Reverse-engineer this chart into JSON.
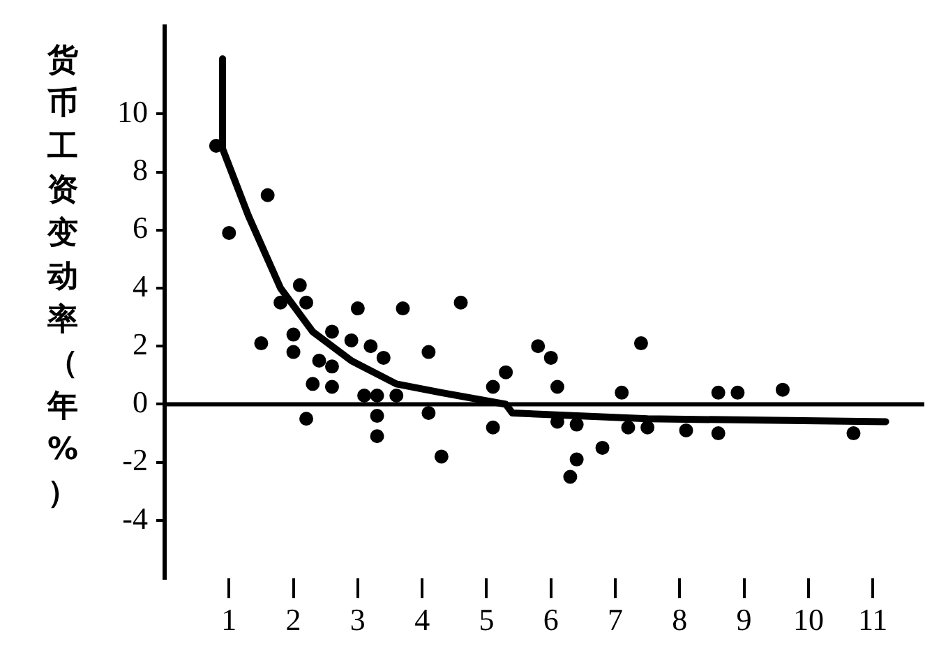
{
  "chart_data": {
    "type": "scatter",
    "ylabel": "货币工资变动率（年%）",
    "xlim": [
      0,
      11.8
    ],
    "xticks": [
      1,
      2,
      3,
      4,
      5,
      6,
      7,
      8,
      9,
      10,
      11
    ],
    "ylim": [
      -6,
      13
    ],
    "yticks": [
      -4,
      -2,
      0,
      2,
      4,
      6,
      8,
      10
    ],
    "grid": false,
    "legend": false,
    "marker": "circle",
    "ref_lines": [
      {
        "axis": "y",
        "value": 0,
        "color": "#000000"
      }
    ],
    "series": [
      {
        "color": "#000000",
        "x": [
          0.8,
          1.6,
          1.0,
          2.1,
          1.8,
          2.2,
          3.0,
          3.7,
          4.6,
          1.5,
          2.0,
          2.0,
          2.6,
          2.9,
          3.2,
          3.4,
          4.1,
          2.4,
          2.6,
          2.3,
          2.6,
          5.3,
          5.1,
          3.1,
          3.3,
          3.6,
          4.1,
          2.2,
          3.3,
          3.3,
          4.3,
          5.1,
          5.8,
          6.0,
          7.4,
          6.1,
          6.8,
          6.4,
          6.3,
          7.1,
          8.6,
          8.9,
          9.6,
          6.1,
          6.4,
          7.2,
          7.5,
          8.1,
          8.6,
          10.7
        ],
        "values": [
          8.9,
          7.2,
          5.9,
          4.1,
          3.5,
          3.5,
          3.3,
          3.3,
          3.5,
          2.1,
          2.4,
          1.8,
          2.5,
          2.2,
          2.0,
          1.6,
          1.8,
          1.5,
          1.3,
          0.7,
          0.6,
          1.1,
          0.6,
          0.3,
          0.3,
          0.3,
          -0.3,
          -0.5,
          -0.4,
          -1.1,
          -1.8,
          -0.8,
          2.0,
          1.6,
          2.1,
          0.6,
          -1.5,
          -1.9,
          -2.5,
          0.4,
          0.4,
          0.4,
          0.5,
          -0.6,
          -0.7,
          -0.8,
          -0.8,
          -0.9,
          -1.0,
          -1.0
        ]
      },
      {
        "type": "line",
        "color": "#000000",
        "marker": "none",
        "x": [
          0.9,
          0.9,
          1.3,
          1.8,
          2.3,
          2.9,
          3.6,
          4.3,
          5.3,
          5.4,
          7.5,
          11.2
        ],
        "values": [
          11.9,
          8.8,
          6.5,
          4.0,
          2.5,
          1.5,
          0.7,
          0.4,
          0.0,
          -0.3,
          -0.5,
          -0.6
        ]
      }
    ]
  }
}
